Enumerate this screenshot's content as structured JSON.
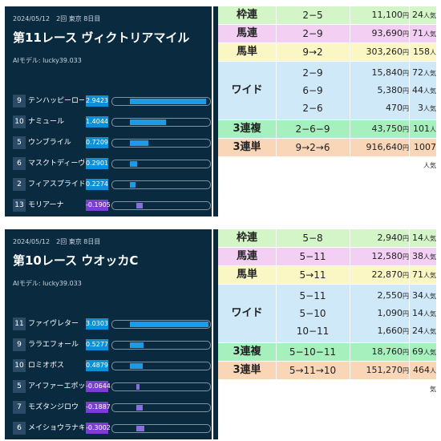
{
  "races": [
    {
      "date": "2024/05/12　2回 東京 8日目",
      "title": "第11レース ヴィクトリアマイル",
      "model": "AIモデル: lucky39.033",
      "horses": [
        {
          "num": "9",
          "name": "テンハッピーローズ",
          "score": "2.9423",
          "value": 2.9423
        },
        {
          "num": "10",
          "name": "ナミュール",
          "score": "1.4044",
          "value": 1.4044
        },
        {
          "num": "5",
          "name": "ウンブライル",
          "score": "0.7209",
          "value": 0.7209
        },
        {
          "num": "6",
          "name": "マスクトディーヴァ",
          "score": "0.2901",
          "value": 0.2901
        },
        {
          "num": "2",
          "name": "フィアスプライド",
          "score": "0.2274",
          "value": 0.2274
        },
        {
          "num": "13",
          "name": "モリアーナ",
          "score": "-0.1905",
          "value": -0.1905
        }
      ],
      "payouts": [
        {
          "label": "枠連",
          "color": "#d4f5c8",
          "rows": [
            {
              "combo": "2−5",
              "amount": "11,100",
              "pop": "24"
            }
          ]
        },
        {
          "label": "馬連",
          "color": "#f3d0f3",
          "rows": [
            {
              "combo": "2−9",
              "amount": "93,690",
              "pop": "71"
            }
          ]
        },
        {
          "label": "馬単",
          "color": "#fbf7c4",
          "rows": [
            {
              "combo": "9→2",
              "amount": "303,260",
              "pop": "158"
            }
          ]
        },
        {
          "label": "ワイド",
          "color": "#cfe9f8",
          "rows": [
            {
              "combo": "2−9",
              "amount": "15,840",
              "pop": "72"
            },
            {
              "combo": "6−9",
              "amount": "5,380",
              "pop": "44"
            },
            {
              "combo": "2−6",
              "amount": "470",
              "pop": "3"
            }
          ]
        },
        {
          "label": "3連複",
          "color": "#a6f0be",
          "rows": [
            {
              "combo": "2−6−9",
              "amount": "43,750",
              "pop": "101"
            }
          ]
        },
        {
          "label": "3連単",
          "color": "#fad6b8",
          "rows": [
            {
              "combo": "9→2→6",
              "amount": "916,640",
              "pop": "1007"
            }
          ]
        }
      ]
    },
    {
      "date": "2024/05/12　2回 東京 8日目",
      "title": "第10レース ウオッカC",
      "model": "AIモデル: lucky39.033",
      "horses": [
        {
          "num": "11",
          "name": "ファイヴレター",
          "score": "3.0303",
          "value": 3.0303
        },
        {
          "num": "9",
          "name": "ララエフォール",
          "score": "0.5277",
          "value": 0.5277
        },
        {
          "num": "10",
          "name": "ロミオボス",
          "score": "0.4879",
          "value": 0.4879
        },
        {
          "num": "5",
          "name": "アイファーエポック",
          "score": "-0.0644",
          "value": -0.0644
        },
        {
          "num": "7",
          "name": "モズタンジロウ",
          "score": "-0.1887",
          "value": -0.1887
        },
        {
          "num": "6",
          "name": "メイショウラナキラ",
          "score": "-0.3002",
          "value": -0.3002
        }
      ],
      "payouts": [
        {
          "label": "枠連",
          "color": "#d4f5c8",
          "rows": [
            {
              "combo": "5−8",
              "amount": "2,940",
              "pop": "14"
            }
          ]
        },
        {
          "label": "馬連",
          "color": "#f3d0f3",
          "rows": [
            {
              "combo": "5−11",
              "amount": "12,580",
              "pop": "38"
            }
          ]
        },
        {
          "label": "馬単",
          "color": "#fbf7c4",
          "rows": [
            {
              "combo": "5→11",
              "amount": "22,870",
              "pop": "71"
            }
          ]
        },
        {
          "label": "ワイド",
          "color": "#cfe9f8",
          "rows": [
            {
              "combo": "5−11",
              "amount": "2,550",
              "pop": "34"
            },
            {
              "combo": "5−10",
              "amount": "1,090",
              "pop": "14"
            },
            {
              "combo": "10−11",
              "amount": "1,660",
              "pop": "24"
            }
          ]
        },
        {
          "label": "3連複",
          "color": "#a6f0be",
          "rows": [
            {
              "combo": "5−10−11",
              "amount": "18,760",
              "pop": "69"
            }
          ]
        },
        {
          "label": "3連単",
          "color": "#fad6b8",
          "rows": [
            {
              "combo": "5→11→10",
              "amount": "151,270",
              "pop": "464"
            }
          ]
        }
      ]
    }
  ],
  "units": {
    "yen": "円",
    "pop": "人気"
  }
}
